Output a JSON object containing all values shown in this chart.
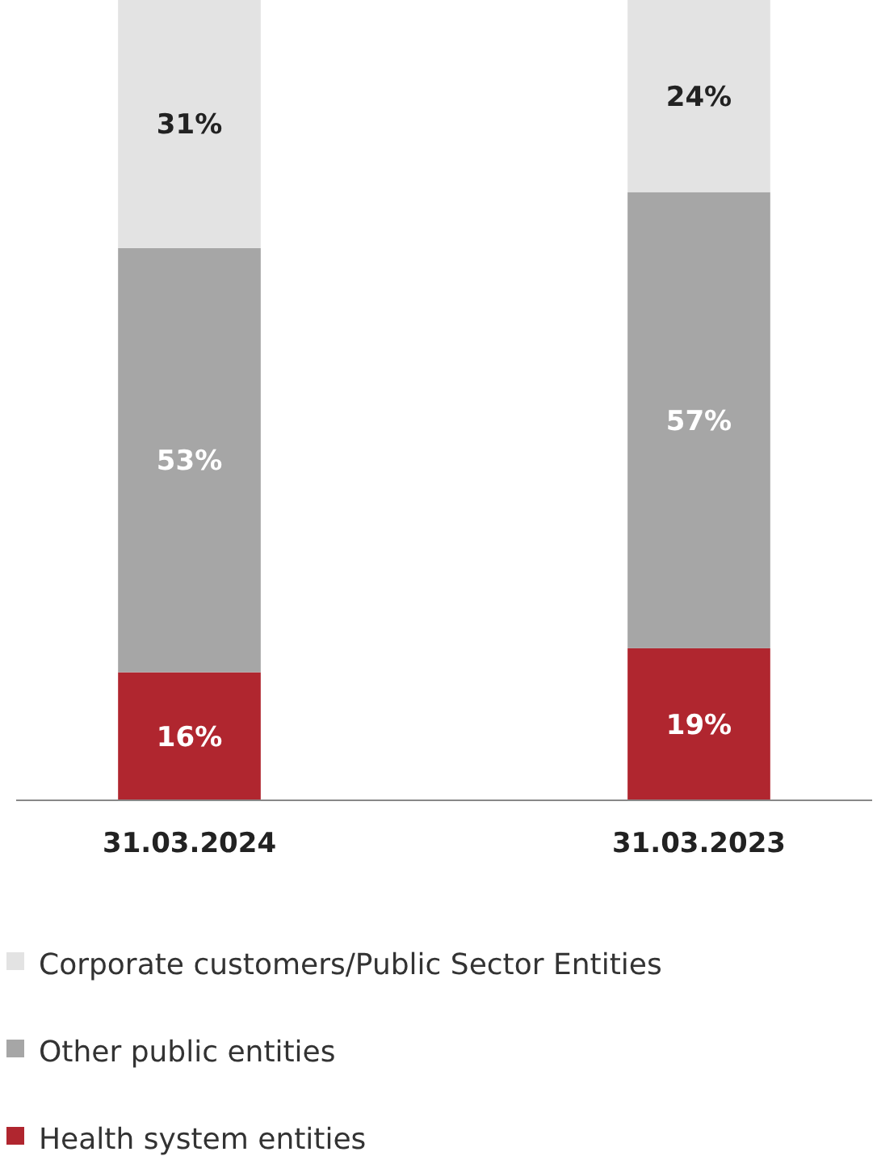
{
  "chart_data": {
    "type": "bar",
    "stacked": true,
    "legend": "bottom",
    "categories": [
      "31.03.2024",
      "31.03.2023"
    ],
    "series": [
      {
        "name": "Health system entities",
        "color": "#b0262f",
        "values": [
          16,
          19
        ],
        "value_labels": [
          "16%",
          "19%"
        ]
      },
      {
        "name": "Other public entities",
        "color": "#a6a6a6",
        "values": [
          53,
          57
        ],
        "value_labels": [
          "53%",
          "57%"
        ]
      },
      {
        "name": "Corporate customers/Public Sector Entities",
        "color": "#e3e3e3",
        "values": [
          31,
          24
        ],
        "value_labels": [
          "31%",
          "24%"
        ]
      }
    ]
  }
}
